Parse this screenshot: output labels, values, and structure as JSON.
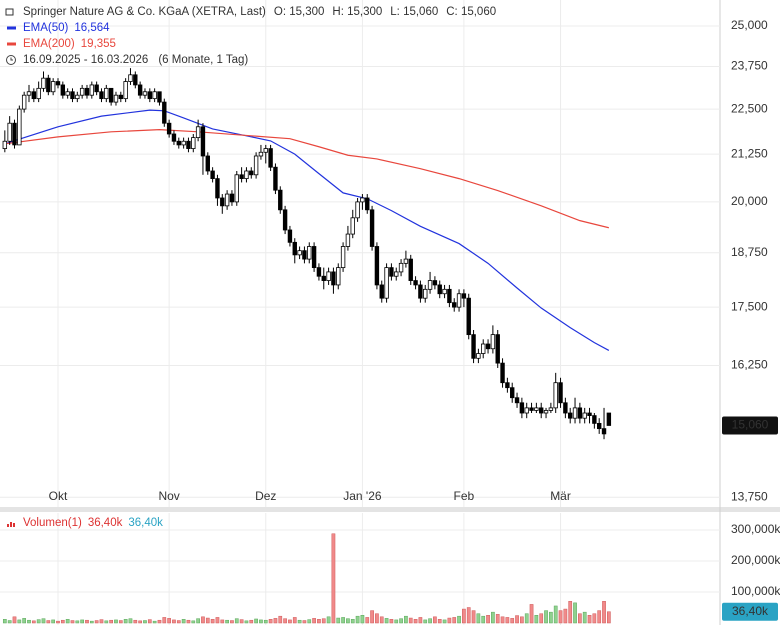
{
  "chart_data": {
    "type": "candlestick",
    "title": "Springer Nature AG & Co. KGaA (XETRA, Last)",
    "ohlc_labels": [
      "O: 15,300",
      "H: 15,300",
      "L: 15,060",
      "C: 15,060"
    ],
    "date_range": "16.09.2025 - 16.03.2026",
    "period": "(6 Monate, 1 Tag)",
    "log_scale": true,
    "grid": true,
    "up_color": "#ffffff",
    "down_color": "#000000",
    "xlim": [
      -1,
      148
    ],
    "xticks": [
      {
        "value": 11,
        "label": "Okt"
      },
      {
        "value": 34,
        "label": "Nov"
      },
      {
        "value": 54,
        "label": "Dez"
      },
      {
        "value": 74,
        "label": "Jan '26"
      },
      {
        "value": 95,
        "label": "Feb"
      },
      {
        "value": 115,
        "label": "Mär"
      }
    ],
    "ylim": [
      13.58,
      25.84
    ],
    "yticks": [
      {
        "value": 13.75,
        "label": "13,750"
      },
      {
        "value": 16.25,
        "label": "16,250"
      },
      {
        "value": 17.5,
        "label": "17,500"
      },
      {
        "value": 18.75,
        "label": "18,750"
      },
      {
        "value": 20,
        "label": "20,000"
      },
      {
        "value": 21.25,
        "label": "21,250"
      },
      {
        "value": 22.5,
        "label": "22,500"
      },
      {
        "value": 23.75,
        "label": "23,750"
      },
      {
        "value": 25,
        "label": "25,000"
      }
    ],
    "last_price": {
      "value": 15.06,
      "label": "15,060"
    },
    "candles": [
      [
        21.4,
        21.9,
        21.3,
        21.6
      ],
      [
        21.6,
        22.3,
        21.5,
        22.1
      ],
      [
        22.1,
        22.2,
        21.4,
        21.5
      ],
      [
        21.5,
        22.6,
        21.5,
        22.5
      ],
      [
        22.5,
        23.0,
        22.4,
        22.9
      ],
      [
        22.9,
        23.2,
        22.7,
        23.0
      ],
      [
        23.0,
        23.1,
        22.7,
        22.8
      ],
      [
        22.8,
        23.3,
        22.7,
        23.1
      ],
      [
        23.1,
        23.6,
        23.0,
        23.4
      ],
      [
        23.4,
        23.5,
        22.9,
        23.0
      ],
      [
        23.0,
        23.4,
        22.9,
        23.3
      ],
      [
        23.3,
        23.4,
        23.1,
        23.2
      ],
      [
        23.2,
        23.3,
        22.8,
        22.9
      ],
      [
        22.9,
        23.1,
        22.8,
        23.0
      ],
      [
        23.0,
        23.1,
        22.7,
        22.8
      ],
      [
        22.8,
        23.0,
        22.7,
        22.9
      ],
      [
        22.9,
        23.2,
        22.8,
        23.1
      ],
      [
        23.1,
        23.2,
        22.8,
        22.9
      ],
      [
        22.9,
        23.3,
        22.8,
        23.2
      ],
      [
        23.2,
        23.3,
        22.9,
        23.0
      ],
      [
        23.0,
        23.1,
        22.7,
        22.8
      ],
      [
        22.8,
        23.2,
        22.7,
        23.1
      ],
      [
        23.1,
        23.1,
        22.6,
        22.7
      ],
      [
        22.7,
        23.0,
        22.6,
        22.9
      ],
      [
        22.9,
        23.0,
        22.7,
        22.8
      ],
      [
        22.8,
        23.4,
        22.7,
        23.3
      ],
      [
        23.3,
        23.7,
        23.2,
        23.5
      ],
      [
        23.5,
        23.6,
        23.1,
        23.2
      ],
      [
        23.2,
        23.3,
        22.8,
        22.9
      ],
      [
        22.9,
        23.1,
        22.8,
        23.0
      ],
      [
        23.0,
        23.1,
        22.7,
        22.8
      ],
      [
        22.8,
        23.1,
        22.7,
        23.0
      ],
      [
        23.0,
        23.0,
        22.6,
        22.7
      ],
      [
        22.7,
        22.8,
        22.0,
        22.1
      ],
      [
        22.1,
        22.2,
        21.7,
        21.8
      ],
      [
        21.8,
        21.9,
        21.5,
        21.6
      ],
      [
        21.6,
        21.7,
        21.4,
        21.5
      ],
      [
        21.5,
        21.7,
        21.4,
        21.6
      ],
      [
        21.6,
        21.7,
        21.3,
        21.4
      ],
      [
        21.4,
        21.8,
        21.3,
        21.7
      ],
      [
        21.7,
        22.2,
        21.6,
        22.0
      ],
      [
        22.0,
        22.1,
        20.7,
        21.2
      ],
      [
        21.2,
        21.3,
        20.7,
        20.8
      ],
      [
        20.8,
        20.9,
        20.5,
        20.6
      ],
      [
        20.6,
        20.7,
        19.9,
        20.1
      ],
      [
        20.1,
        20.2,
        19.7,
        19.9
      ],
      [
        19.9,
        20.3,
        19.8,
        20.2
      ],
      [
        20.2,
        20.3,
        19.9,
        20.0
      ],
      [
        20.0,
        20.8,
        19.9,
        20.7
      ],
      [
        20.7,
        20.9,
        20.5,
        20.6
      ],
      [
        20.6,
        20.9,
        20.5,
        20.8
      ],
      [
        20.8,
        20.9,
        20.6,
        20.7
      ],
      [
        20.7,
        21.3,
        20.6,
        21.2
      ],
      [
        21.2,
        21.5,
        21.1,
        21.3
      ],
      [
        21.3,
        21.5,
        21.0,
        21.4
      ],
      [
        21.4,
        21.5,
        20.8,
        20.9
      ],
      [
        20.9,
        21.0,
        20.2,
        20.3
      ],
      [
        20.3,
        20.4,
        19.7,
        19.8
      ],
      [
        19.8,
        19.9,
        19.2,
        19.3
      ],
      [
        19.3,
        19.4,
        18.9,
        19.0
      ],
      [
        19.0,
        19.1,
        18.5,
        18.7
      ],
      [
        18.7,
        18.9,
        18.6,
        18.8
      ],
      [
        18.8,
        18.9,
        18.5,
        18.6
      ],
      [
        18.6,
        19.0,
        18.5,
        18.9
      ],
      [
        18.9,
        19.0,
        18.3,
        18.4
      ],
      [
        18.4,
        18.5,
        18.1,
        18.2
      ],
      [
        18.2,
        18.4,
        17.9,
        18.1
      ],
      [
        18.1,
        18.4,
        18.0,
        18.3
      ],
      [
        18.3,
        18.4,
        17.8,
        18.0
      ],
      [
        18.0,
        18.5,
        17.9,
        18.4
      ],
      [
        18.4,
        19.0,
        18.3,
        18.9
      ],
      [
        18.9,
        19.4,
        18.8,
        19.2
      ],
      [
        19.2,
        19.8,
        19.1,
        19.6
      ],
      [
        19.6,
        20.1,
        19.5,
        20.0
      ],
      [
        20.0,
        20.2,
        19.8,
        20.1
      ],
      [
        20.1,
        20.2,
        19.7,
        19.8
      ],
      [
        19.8,
        19.9,
        18.8,
        18.9
      ],
      [
        18.9,
        19.0,
        17.9,
        18.0
      ],
      [
        18.0,
        18.1,
        17.6,
        17.7
      ],
      [
        17.7,
        18.5,
        17.6,
        18.4
      ],
      [
        18.4,
        18.5,
        18.1,
        18.2
      ],
      [
        18.2,
        18.4,
        18.1,
        18.3
      ],
      [
        18.3,
        18.6,
        18.2,
        18.5
      ],
      [
        18.5,
        18.8,
        18.4,
        18.6
      ],
      [
        18.6,
        18.7,
        18.0,
        18.1
      ],
      [
        18.1,
        18.2,
        17.9,
        18.0
      ],
      [
        18.0,
        18.1,
        17.6,
        17.7
      ],
      [
        17.7,
        18.0,
        17.6,
        17.9
      ],
      [
        17.9,
        18.3,
        17.8,
        18.1
      ],
      [
        18.1,
        18.2,
        17.9,
        18.0
      ],
      [
        18.0,
        18.1,
        17.7,
        17.8
      ],
      [
        17.8,
        18.0,
        17.7,
        17.9
      ],
      [
        17.9,
        18.0,
        17.5,
        17.6
      ],
      [
        17.6,
        17.7,
        17.4,
        17.5
      ],
      [
        17.5,
        17.9,
        17.4,
        17.8
      ],
      [
        17.8,
        17.9,
        17.5,
        17.7
      ],
      [
        17.7,
        17.8,
        16.8,
        16.9
      ],
      [
        16.9,
        17.0,
        16.3,
        16.4
      ],
      [
        16.4,
        16.6,
        16.3,
        16.5
      ],
      [
        16.5,
        16.8,
        16.4,
        16.7
      ],
      [
        16.7,
        16.8,
        16.5,
        16.6
      ],
      [
        16.6,
        17.1,
        16.5,
        16.9
      ],
      [
        16.9,
        17.0,
        16.2,
        16.3
      ],
      [
        16.3,
        16.4,
        15.8,
        15.9
      ],
      [
        15.9,
        16.0,
        15.7,
        15.8
      ],
      [
        15.8,
        15.9,
        15.5,
        15.6
      ],
      [
        15.6,
        15.7,
        15.4,
        15.5
      ],
      [
        15.5,
        15.6,
        15.2,
        15.3
      ],
      [
        15.3,
        15.5,
        15.2,
        15.4
      ],
      [
        15.4,
        15.5,
        15.3,
        15.35
      ],
      [
        15.35,
        15.5,
        15.3,
        15.4
      ],
      [
        15.4,
        15.5,
        15.2,
        15.3
      ],
      [
        15.3,
        15.4,
        15.2,
        15.35
      ],
      [
        15.35,
        15.5,
        15.3,
        15.4
      ],
      [
        15.4,
        16.1,
        15.3,
        15.9
      ],
      [
        15.9,
        16.0,
        15.4,
        15.5
      ],
      [
        15.5,
        15.6,
        15.2,
        15.3
      ],
      [
        15.3,
        15.4,
        15.1,
        15.2
      ],
      [
        15.2,
        15.6,
        15.1,
        15.4
      ],
      [
        15.4,
        15.5,
        15.1,
        15.2
      ],
      [
        15.2,
        15.4,
        15.1,
        15.3
      ],
      [
        15.3,
        15.4,
        15.1,
        15.25
      ],
      [
        15.25,
        15.3,
        15.0,
        15.1
      ],
      [
        15.1,
        15.2,
        14.9,
        15.0
      ],
      [
        15.0,
        15.4,
        14.8,
        14.9
      ],
      [
        15.3,
        15.3,
        15.06,
        15.06
      ]
    ],
    "series": [
      {
        "name": "EMA(50)",
        "color": "#2233dd",
        "value_label": "16,564",
        "x": [
          0,
          11,
          20,
          30,
          33,
          37,
          43,
          50,
          55,
          60,
          65,
          70,
          75,
          80,
          86,
          94,
          100,
          106,
          111,
          117,
          122,
          125
        ],
        "values": [
          21.53,
          22.0,
          22.3,
          22.47,
          22.45,
          22.25,
          21.94,
          21.75,
          21.61,
          21.25,
          20.73,
          20.23,
          20.08,
          19.78,
          19.39,
          18.97,
          18.5,
          17.93,
          17.48,
          17.05,
          16.73,
          16.564
        ]
      },
      {
        "name": "EMA(200)",
        "color": "#e8473d",
        "value_label": "19,355",
        "x": [
          0,
          11,
          22,
          32,
          40,
          51,
          59,
          65,
          71,
          77,
          86,
          94,
          102,
          111,
          119,
          125
        ],
        "values": [
          21.53,
          21.72,
          21.86,
          21.92,
          21.86,
          21.75,
          21.67,
          21.45,
          21.22,
          21.12,
          20.86,
          20.6,
          20.29,
          19.9,
          19.53,
          19.355
        ]
      }
    ],
    "volume": {
      "name": "Volumen(1)",
      "value_label": "36,40k",
      "value_label_2": "36,40k",
      "up_color": "#8fd18f",
      "down_color": "#f08a8a",
      "label_color": "#2aa3c4",
      "ylim": [
        0,
        355
      ],
      "yticks": [
        {
          "value": 100,
          "label": "100,000k"
        },
        {
          "value": 200,
          "label": "200,000k"
        },
        {
          "value": 300,
          "label": "300,000k"
        }
      ],
      "last": {
        "value": 36.4,
        "label": "36,40k"
      },
      "values": [
        12,
        8,
        20,
        10,
        15,
        9,
        7,
        11,
        14,
        8,
        10,
        6,
        9,
        12,
        8,
        7,
        10,
        9,
        6,
        8,
        11,
        7,
        9,
        10,
        8,
        12,
        14,
        9,
        7,
        8,
        11,
        6,
        9,
        18,
        15,
        10,
        8,
        12,
        9,
        7,
        14,
        20,
        16,
        12,
        18,
        10,
        9,
        8,
        14,
        11,
        7,
        9,
        13,
        10,
        9,
        12,
        15,
        22,
        14,
        10,
        18,
        9,
        8,
        11,
        15,
        12,
        14,
        20,
        288,
        16,
        18,
        14,
        12,
        22,
        25,
        18,
        40,
        30,
        20,
        15,
        12,
        10,
        14,
        22,
        16,
        12,
        18,
        10,
        14,
        20,
        12,
        10,
        16,
        18,
        22,
        45,
        50,
        40,
        30,
        22,
        25,
        35,
        28,
        20,
        18,
        15,
        24,
        20,
        30,
        60,
        25,
        30,
        40,
        35,
        55,
        40,
        45,
        70,
        65,
        30,
        35,
        25,
        30,
        40,
        70,
        36.4
      ]
    }
  }
}
